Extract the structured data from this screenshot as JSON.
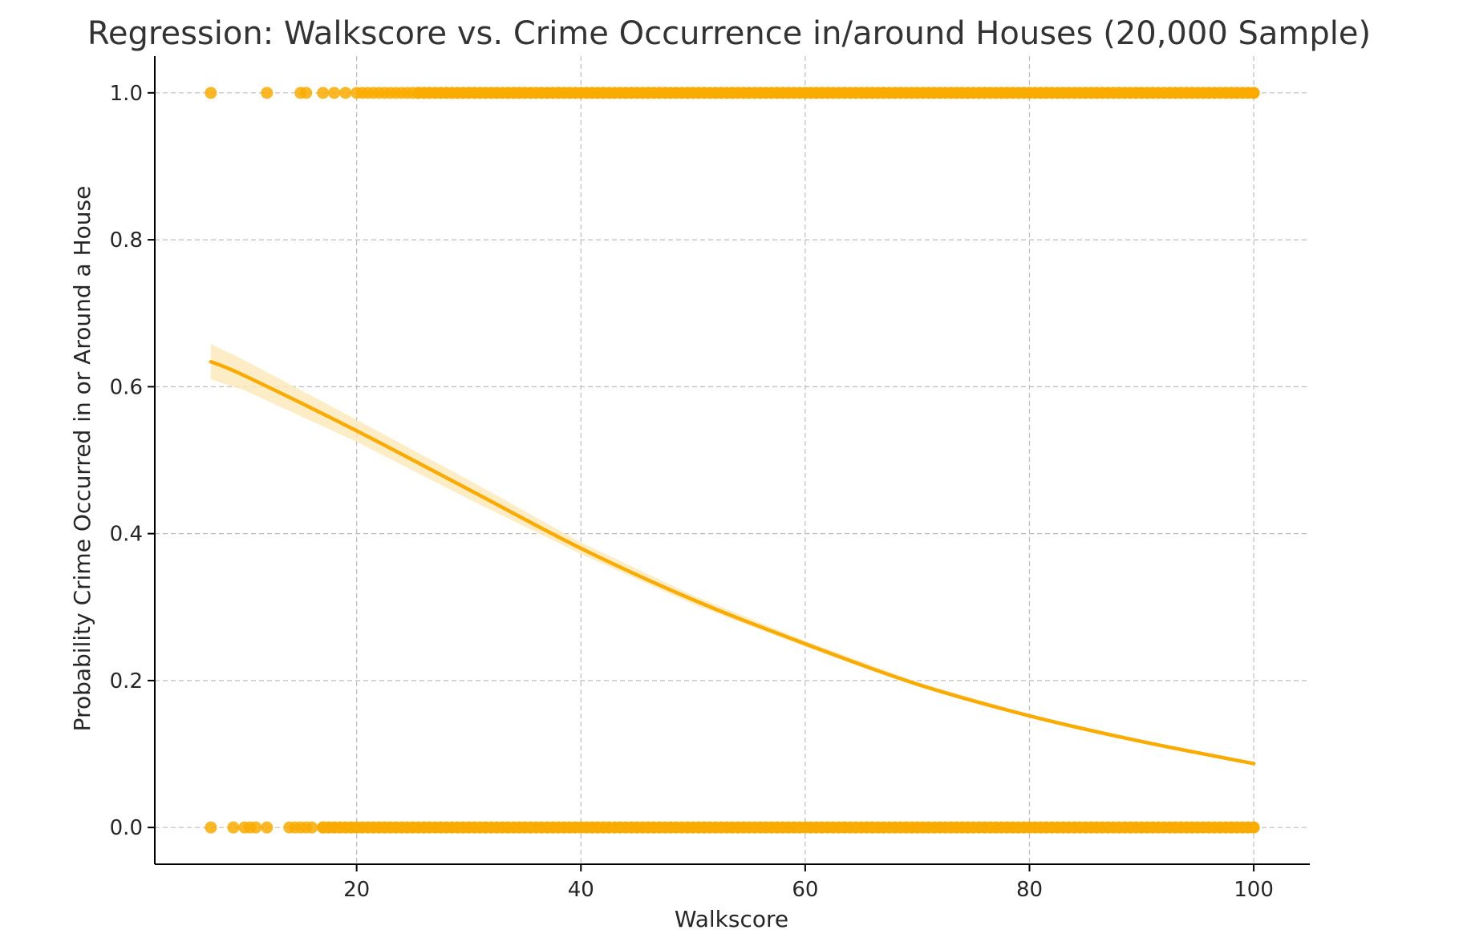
{
  "chart_data": {
    "type": "scatter",
    "title": "Regression: Walkscore vs. Crime Occurrence in/around Houses (20,000 Sample)",
    "xlabel": "Walkscore",
    "ylabel": "Probability Crime Occurred in or Around a House",
    "xlim": [
      2,
      105
    ],
    "ylim": [
      -0.05,
      1.05
    ],
    "xticks": [
      20,
      40,
      60,
      80,
      100
    ],
    "xtick_labels": [
      "20",
      "40",
      "60",
      "80",
      "100"
    ],
    "yticks": [
      0.0,
      0.2,
      0.4,
      0.6,
      0.8,
      1.0
    ],
    "ytick_labels": [
      "0.0",
      "0.2",
      "0.4",
      "0.6",
      "0.8",
      "1.0"
    ],
    "grid": true,
    "color": "#f9ab00",
    "band_color": "#fde9b8",
    "series": [
      {
        "kind": "points",
        "y": 1,
        "x": [
          7,
          12,
          15,
          15.5,
          17,
          18,
          19,
          20,
          20.5,
          21,
          21.5,
          22,
          22.5,
          23,
          23.5,
          24,
          24.5,
          25,
          25.5
        ],
        "dense_range": [
          25.5,
          100
        ]
      },
      {
        "kind": "points",
        "y": 0,
        "x": [
          7,
          9,
          10,
          10.5,
          11,
          12,
          14,
          14.5,
          15,
          15.5,
          16,
          17
        ],
        "dense_range": [
          17,
          100
        ]
      },
      {
        "kind": "fit",
        "x": [
          7,
          10,
          20,
          30,
          40,
          50,
          60,
          70,
          80,
          90,
          100
        ],
        "y": [
          0.634,
          0.615,
          0.54,
          0.46,
          0.38,
          0.31,
          0.25,
          0.195,
          0.152,
          0.117,
          0.087
        ],
        "ci_low": [
          0.61,
          0.595,
          0.525,
          0.447,
          0.372,
          0.304,
          0.246,
          0.192,
          0.15,
          0.115,
          0.085
        ],
        "ci_high": [
          0.658,
          0.636,
          0.555,
          0.473,
          0.388,
          0.316,
          0.254,
          0.198,
          0.154,
          0.119,
          0.089
        ]
      }
    ]
  }
}
